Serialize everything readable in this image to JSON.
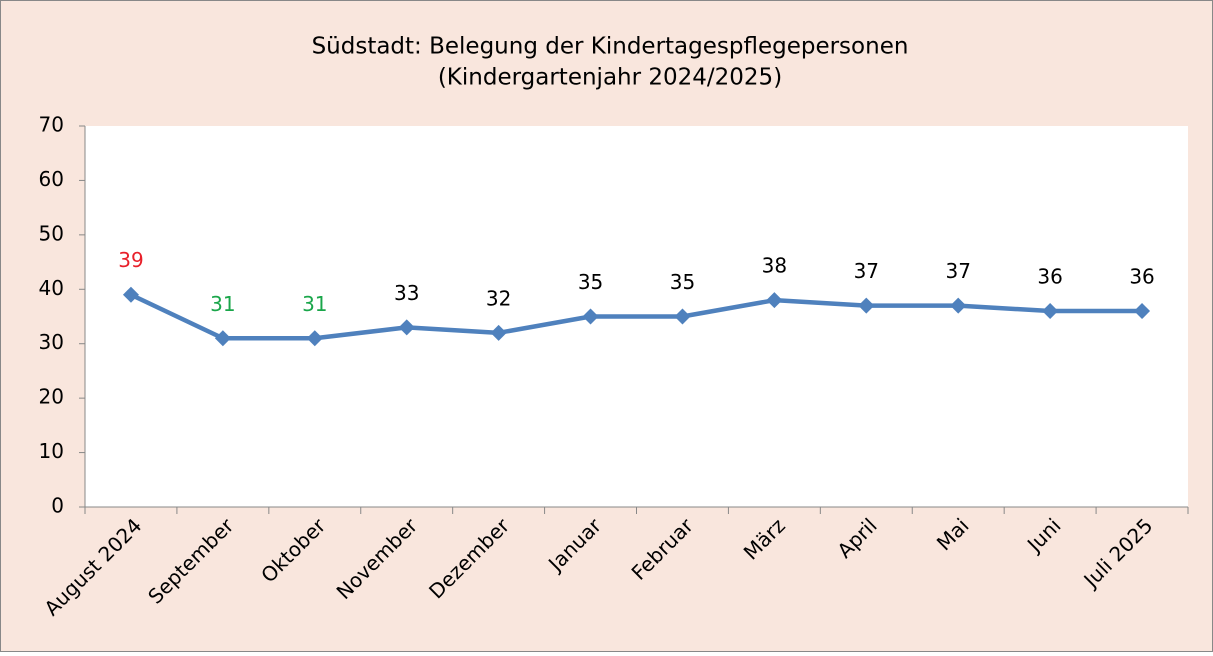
{
  "chart_data": {
    "type": "line",
    "title": [
      "Südstadt: Belegung der Kindertagespflegepersonen",
      "(Kindergartenjahr 2024/2025)"
    ],
    "categories": [
      "August 2024",
      "September",
      "Oktober",
      "November",
      "Dezember",
      "Januar",
      "Februar",
      "März",
      "April",
      "Mai",
      "Juni",
      "Juli 2025"
    ],
    "series": [
      {
        "name": "Belegung",
        "color": "#4f81bd",
        "values": [
          39,
          31,
          31,
          33,
          32,
          35,
          35,
          38,
          37,
          37,
          36,
          36
        ],
        "label_colors": [
          "#e8202a",
          "#1aa64a",
          "#1aa64a",
          "#000000",
          "#000000",
          "#000000",
          "#000000",
          "#000000",
          "#000000",
          "#000000",
          "#000000",
          "#000000"
        ]
      }
    ],
    "ylim": [
      0,
      70
    ],
    "yticks": [
      0,
      10,
      20,
      30,
      40,
      50,
      60,
      70
    ],
    "grid": false
  }
}
